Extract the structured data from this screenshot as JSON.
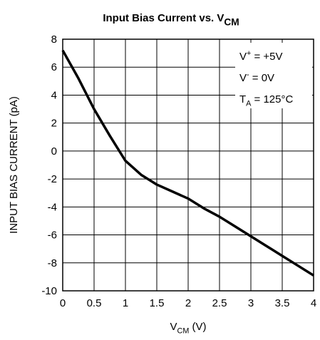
{
  "chart_data": {
    "type": "line",
    "title": {
      "text": "Input Bias Current vs. V",
      "subscript": "CM"
    },
    "xlabel": {
      "text": "V",
      "subscript": "CM",
      "suffix": " (V)"
    },
    "ylabel": "INPUT BIAS CURRENT (pA)",
    "annotations": [
      {
        "text": "V",
        "superscript": "+",
        "suffix": " = +5V"
      },
      {
        "text": "V",
        "superscript": "-",
        "suffix": " = 0V"
      },
      {
        "text": "T",
        "subscript": "A",
        "suffix": " = 125°C"
      }
    ],
    "x": [
      0,
      0.25,
      0.5,
      0.75,
      1,
      1.25,
      1.5,
      1.75,
      2,
      2.25,
      2.5,
      2.75,
      3,
      3.25,
      3.5,
      3.75,
      4
    ],
    "series": [
      {
        "color": "#000000",
        "values": [
          7.2,
          5.2,
          3.0,
          1.1,
          -0.7,
          -1.7,
          -2.4,
          -2.9,
          -3.4,
          -4.1,
          -4.7,
          -5.4,
          -6.1,
          -6.8,
          -7.5,
          -8.2,
          -8.9
        ]
      }
    ],
    "xlim": [
      0,
      4
    ],
    "ylim": [
      -10,
      8
    ],
    "xticks": [
      0,
      0.5,
      1,
      1.5,
      2,
      2.5,
      3,
      3.5,
      4
    ],
    "yticks": [
      -10,
      -8,
      -6,
      -4,
      -2,
      0,
      2,
      4,
      6,
      8
    ],
    "grid": true
  }
}
